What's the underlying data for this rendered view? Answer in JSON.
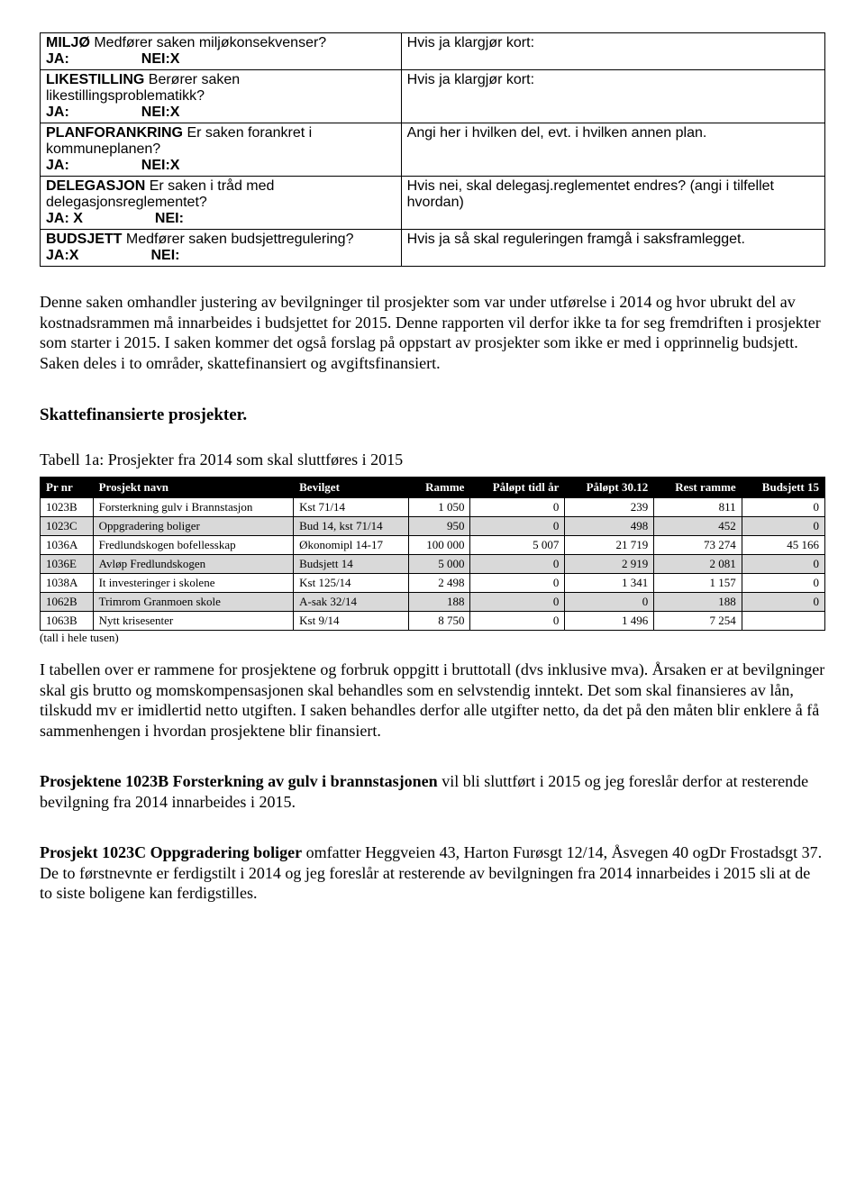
{
  "form": {
    "rows": [
      {
        "label_prefix": "MILJØ",
        "label_rest": "  Medfører saken miljøkonsekvenser?",
        "ja_label": "JA:",
        "nei_label": "NEI:X",
        "right": "Hvis ja klargjør kort:"
      },
      {
        "label_prefix": "LIKESTILLING",
        "label_rest": " Berører saken likestillingsproblematikk?",
        "ja_label": "JA:",
        "nei_label": "NEI:X",
        "right": "Hvis ja klargjør kort:"
      },
      {
        "label_prefix": "PLANFORANKRING",
        "label_rest": "   Er saken forankret i kommuneplanen?",
        "ja_label": "JA:",
        "nei_label": "NEI:X",
        "right": "Angi  her  i hvilken del,  evt. i hvilken annen plan."
      },
      {
        "label_prefix": "DELEGASJON",
        "label_rest": " Er saken i tråd  med delegasjonsreglementet?",
        "ja_label": "JA: X",
        "nei_label": "NEI:",
        "right": "Hvis nei, skal delegasj.reglementet endres? (angi i tilfellet hvordan)"
      },
      {
        "label_prefix": "BUDSJETT",
        "label_rest": " Medfører saken budsjettregulering?",
        "ja_label": "JA:X",
        "nei_label": "NEI:",
        "right": "Hvis ja så skal reguleringen framgå i saksframlegget."
      }
    ]
  },
  "intro": "Denne saken omhandler justering av bevilgninger til prosjekter som var under utførelse i 2014 og hvor ubrukt del av kostnadsrammen må innarbeides i budsjettet for 2015. Denne rapporten vil derfor ikke ta for seg fremdriften i prosjekter som starter i 2015. I saken kommer det også forslag på oppstart av prosjekter som ikke er med i opprinnelig budsjett. Saken deles i to områder, skattefinansiert og avgiftsfinansiert.",
  "section_heading": "Skattefinansierte prosjekter.",
  "table_caption": "Tabell 1a: Prosjekter fra 2014 som skal sluttføres i 2015",
  "table": {
    "type": "table",
    "header_bg": "#000000",
    "header_color": "#ffffff",
    "shade_bg": "#d9d9d9",
    "border_color": "#000000",
    "columns": [
      "Pr nr",
      "Prosjekt navn",
      "Bevilget",
      "Ramme",
      "Påløpt tidl år",
      "Påløpt 30.12",
      "Rest ramme",
      "Budsjett 15"
    ],
    "rows": [
      {
        "shade": false,
        "c": [
          "1023B",
          "Forsterkning gulv i Brannstasjon",
          "Kst 71/14",
          "1 050",
          "0",
          "239",
          "811",
          "0"
        ]
      },
      {
        "shade": true,
        "c": [
          "1023C",
          "Oppgradering boliger",
          "Bud 14, kst 71/14",
          "950",
          "0",
          "498",
          "452",
          "0"
        ]
      },
      {
        "shade": false,
        "c": [
          "1036A",
          "Fredlundskogen bofellesskap",
          "Økonomipl 14-17",
          "100 000",
          "5 007",
          "21 719",
          "73 274",
          "45 166"
        ]
      },
      {
        "shade": true,
        "c": [
          "1036E",
          "Avløp Fredlundskogen",
          "Budsjett 14",
          "5 000",
          "0",
          "2 919",
          "2 081",
          "0"
        ]
      },
      {
        "shade": false,
        "c": [
          "1038A",
          "It investeringer i skolene",
          "Kst 125/14",
          "2 498",
          "0",
          "1 341",
          "1 157",
          "0"
        ]
      },
      {
        "shade": true,
        "c": [
          "1062B",
          "Trimrom Granmoen skole",
          "A-sak 32/14",
          "188",
          "0",
          "0",
          "188",
          "0"
        ]
      },
      {
        "shade": false,
        "c": [
          "1063B",
          "Nytt krisesenter",
          "Kst 9/14",
          "8 750",
          "0",
          "1 496",
          "7 254",
          ""
        ]
      }
    ]
  },
  "table_note": "(tall i hele tusen)",
  "para_under_table": "I tabellen over er rammene for prosjektene og forbruk oppgitt i bruttotall (dvs inklusive mva). Årsaken er at bevilgninger skal gis brutto og momskompensasjonen skal behandles som en selvstendig inntekt. Det som skal finansieres av lån, tilskudd mv er imidlertid netto utgiften. I saken behandles derfor alle utgifter netto, da det på den måten blir enklere å få sammenhengen i hvordan prosjektene blir finansiert.",
  "para_1023B_bold": "Prosjektene 1023B Forsterkning av gulv i brannstasjonen",
  "para_1023B_rest": " vil bli sluttført i 2015 og jeg foreslår derfor at resterende bevilgning fra 2014 innarbeides i 2015.",
  "para_1023C_bold": "Prosjekt 1023C Oppgradering boliger",
  "para_1023C_rest": " omfatter Heggveien 43, Harton Furøsgt 12/14, Åsvegen 40 ogDr Frostadsgt 37. De to førstnevnte er ferdigstilt i 2014 og jeg foreslår at resterende av bevilgningen fra 2014 innarbeides i 2015 sli at de to siste boligene kan ferdigstilles."
}
